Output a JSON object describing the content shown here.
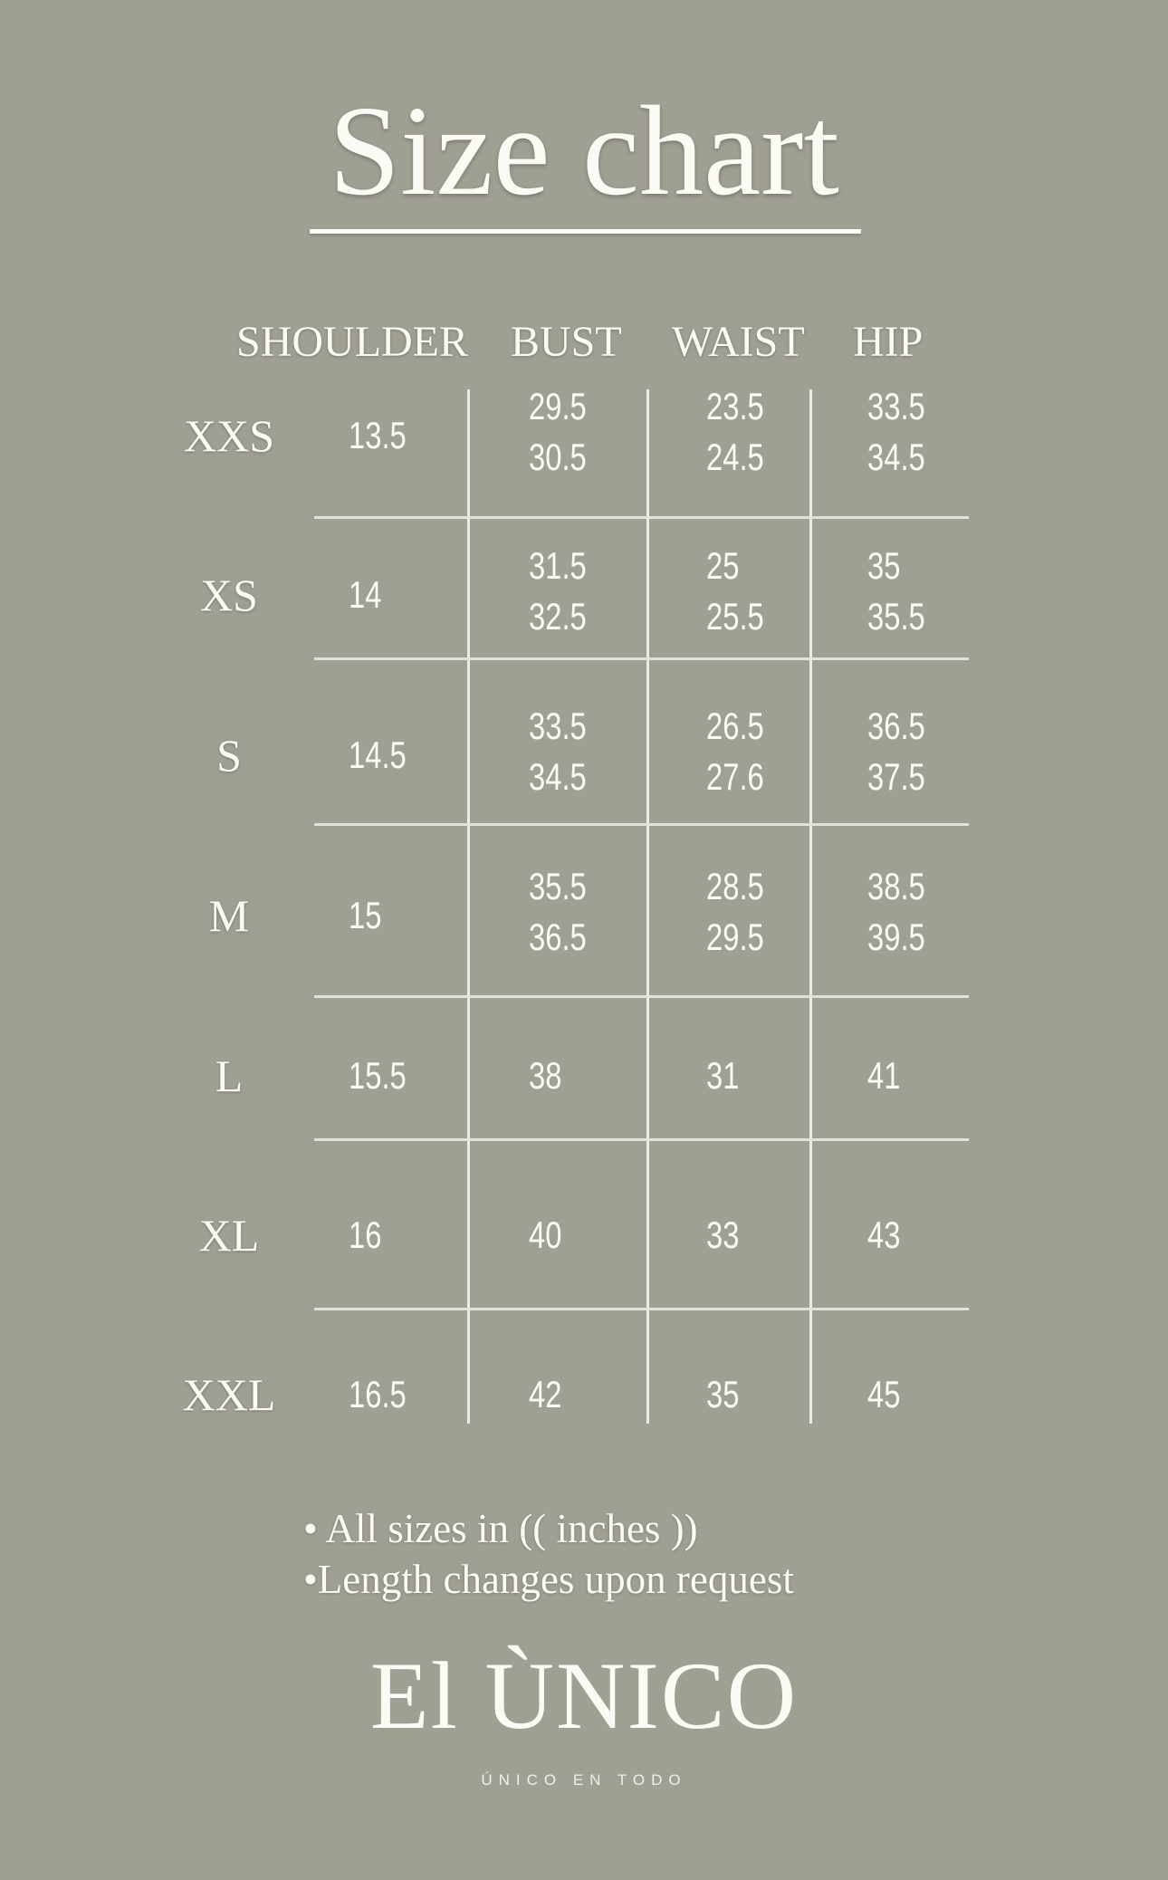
{
  "title": "Size chart",
  "headers": [
    "SHOULDER",
    "BUST",
    "WAIST",
    "HIP"
  ],
  "rows": [
    {
      "size": "XXS",
      "shoulder": [
        "13.5"
      ],
      "bust": [
        "29.5",
        "30.5"
      ],
      "waist": [
        "23.5",
        "24.5"
      ],
      "hip": [
        "33.5",
        "34.5"
      ]
    },
    {
      "size": "XS",
      "shoulder": [
        "14"
      ],
      "bust": [
        "31.5",
        "32.5"
      ],
      "waist": [
        "25",
        "25.5"
      ],
      "hip": [
        "35",
        "35.5"
      ]
    },
    {
      "size": "S",
      "shoulder": [
        "14.5"
      ],
      "bust": [
        "33.5",
        "34.5"
      ],
      "waist": [
        "26.5",
        "27.6"
      ],
      "hip": [
        "36.5",
        "37.5"
      ]
    },
    {
      "size": "M",
      "shoulder": [
        "15"
      ],
      "bust": [
        "35.5",
        "36.5"
      ],
      "waist": [
        "28.5",
        "29.5"
      ],
      "hip": [
        "38.5",
        "39.5"
      ]
    },
    {
      "size": "L",
      "shoulder": [
        "15.5"
      ],
      "bust": [
        "38"
      ],
      "waist": [
        "31"
      ],
      "hip": [
        "41"
      ]
    },
    {
      "size": "XL",
      "shoulder": [
        "16"
      ],
      "bust": [
        "40"
      ],
      "waist": [
        "33"
      ],
      "hip": [
        "43"
      ]
    },
    {
      "size": "XXL",
      "shoulder": [
        "16.5"
      ],
      "bust": [
        "42"
      ],
      "waist": [
        "35"
      ],
      "hip": [
        "45"
      ]
    }
  ],
  "notes": [
    "• All sizes in (( inches ))",
    "•Length changes upon request"
  ],
  "logo": {
    "name": "El ÙNICO",
    "tagline": "ÚNICO EN TODO"
  },
  "colors": {
    "background": "#a09f93",
    "text": "#fbfaf5"
  }
}
